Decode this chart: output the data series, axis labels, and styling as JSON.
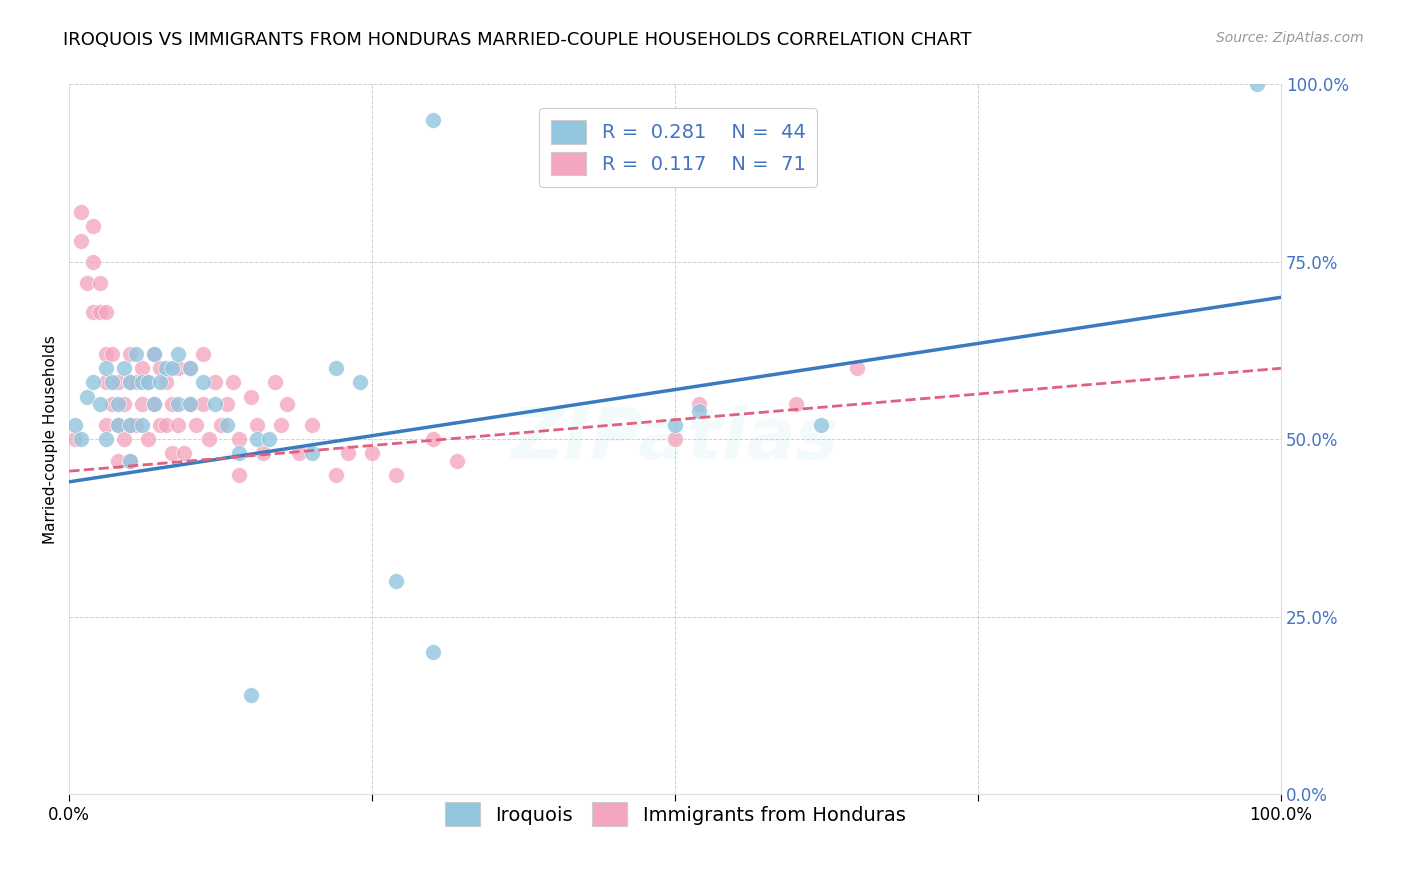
{
  "title": "IROQUOIS VS IMMIGRANTS FROM HONDURAS MARRIED-COUPLE HOUSEHOLDS CORRELATION CHART",
  "source": "Source: ZipAtlas.com",
  "ylabel": "Married-couple Households",
  "yticks": [
    "0.0%",
    "25.0%",
    "50.0%",
    "75.0%",
    "100.0%"
  ],
  "ytick_vals": [
    0.0,
    0.25,
    0.5,
    0.75,
    1.0
  ],
  "xtick_vals": [
    0.0,
    0.25,
    0.5,
    0.75,
    1.0
  ],
  "legend_label1": "Iroquois",
  "legend_label2": "Immigrants from Honduras",
  "R1": 0.281,
  "N1": 44,
  "R2": 0.117,
  "N2": 71,
  "blue_color": "#92c5de",
  "pink_color": "#f4a6be",
  "line_blue": "#3a7bbf",
  "line_pink": "#e0607e",
  "background": "#ffffff",
  "grid_color": "#cccccc",
  "watermark": "ZIPatlas",
  "blue_scatter_x": [
    0.005,
    0.01,
    0.015,
    0.02,
    0.025,
    0.03,
    0.03,
    0.035,
    0.04,
    0.04,
    0.045,
    0.05,
    0.05,
    0.05,
    0.055,
    0.06,
    0.06,
    0.065,
    0.07,
    0.07,
    0.075,
    0.08,
    0.085,
    0.09,
    0.09,
    0.1,
    0.1,
    0.11,
    0.12,
    0.13,
    0.14,
    0.155,
    0.165,
    0.2,
    0.22,
    0.24,
    0.27,
    0.3,
    0.5,
    0.52,
    0.62,
    0.98,
    0.3,
    0.15
  ],
  "blue_scatter_y": [
    0.52,
    0.5,
    0.56,
    0.58,
    0.55,
    0.6,
    0.5,
    0.58,
    0.55,
    0.52,
    0.6,
    0.58,
    0.52,
    0.47,
    0.62,
    0.58,
    0.52,
    0.58,
    0.62,
    0.55,
    0.58,
    0.6,
    0.6,
    0.62,
    0.55,
    0.6,
    0.55,
    0.58,
    0.55,
    0.52,
    0.48,
    0.5,
    0.5,
    0.48,
    0.6,
    0.58,
    0.3,
    0.2,
    0.52,
    0.54,
    0.52,
    1.0,
    0.95,
    0.14
  ],
  "pink_scatter_x": [
    0.005,
    0.01,
    0.01,
    0.015,
    0.02,
    0.02,
    0.02,
    0.025,
    0.025,
    0.03,
    0.03,
    0.03,
    0.03,
    0.035,
    0.035,
    0.04,
    0.04,
    0.04,
    0.045,
    0.045,
    0.05,
    0.05,
    0.05,
    0.05,
    0.055,
    0.055,
    0.06,
    0.06,
    0.065,
    0.065,
    0.07,
    0.07,
    0.075,
    0.075,
    0.08,
    0.08,
    0.085,
    0.085,
    0.09,
    0.09,
    0.095,
    0.1,
    0.1,
    0.105,
    0.11,
    0.11,
    0.115,
    0.12,
    0.125,
    0.13,
    0.135,
    0.14,
    0.14,
    0.15,
    0.155,
    0.16,
    0.17,
    0.175,
    0.18,
    0.19,
    0.2,
    0.22,
    0.23,
    0.25,
    0.27,
    0.3,
    0.32,
    0.5,
    0.52,
    0.6,
    0.65
  ],
  "pink_scatter_y": [
    0.5,
    0.82,
    0.78,
    0.72,
    0.8,
    0.75,
    0.68,
    0.68,
    0.72,
    0.62,
    0.68,
    0.58,
    0.52,
    0.62,
    0.55,
    0.58,
    0.52,
    0.47,
    0.55,
    0.5,
    0.62,
    0.58,
    0.52,
    0.47,
    0.58,
    0.52,
    0.6,
    0.55,
    0.58,
    0.5,
    0.62,
    0.55,
    0.6,
    0.52,
    0.58,
    0.52,
    0.55,
    0.48,
    0.6,
    0.52,
    0.48,
    0.6,
    0.55,
    0.52,
    0.62,
    0.55,
    0.5,
    0.58,
    0.52,
    0.55,
    0.58,
    0.5,
    0.45,
    0.56,
    0.52,
    0.48,
    0.58,
    0.52,
    0.55,
    0.48,
    0.52,
    0.45,
    0.48,
    0.48,
    0.45,
    0.5,
    0.47,
    0.5,
    0.55,
    0.55,
    0.6
  ],
  "blue_line_x0": 0.0,
  "blue_line_y0": 0.44,
  "blue_line_x1": 1.0,
  "blue_line_y1": 0.7,
  "pink_line_x0": 0.0,
  "pink_line_y0": 0.455,
  "pink_line_x1": 1.0,
  "pink_line_y1": 0.6,
  "title_fontsize": 13,
  "source_fontsize": 10,
  "legend_fontsize": 14,
  "tick_fontsize": 12,
  "ylabel_fontsize": 11,
  "watermark_fontsize": 52,
  "watermark_alpha": 0.1,
  "right_tick_color": "#4472c4",
  "left_tick_color": "#888888"
}
